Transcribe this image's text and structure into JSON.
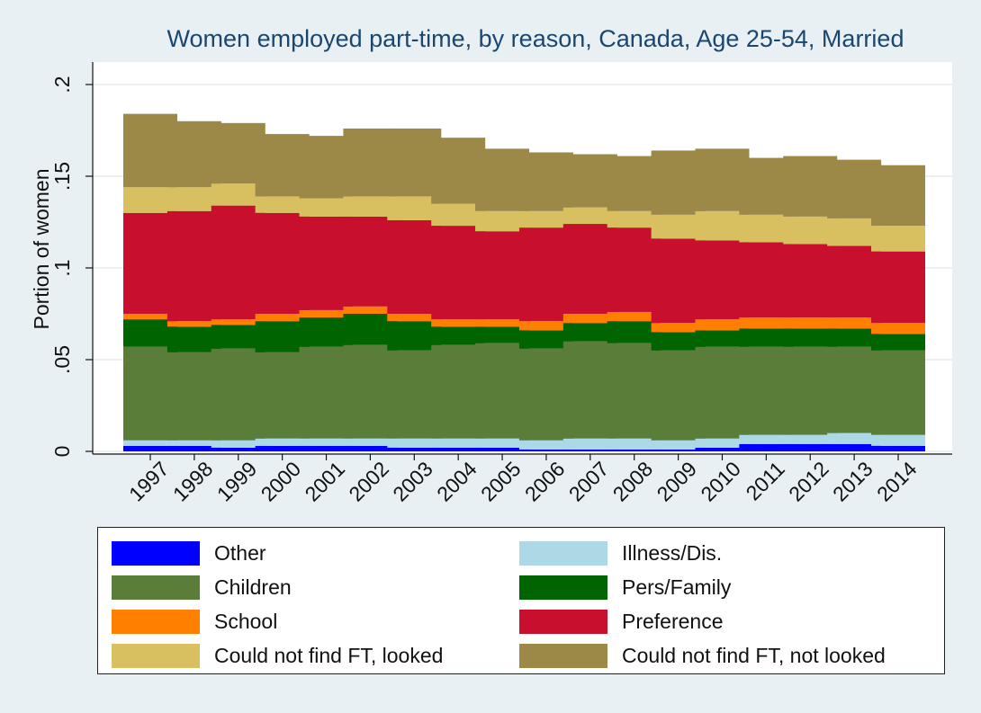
{
  "chart_data": {
    "type": "bar",
    "stacked": true,
    "title": "Women employed part-time, by reason, Canada, Age 25-54, Married",
    "xlabel": "",
    "ylabel": "Portion of women",
    "ylim": [
      0,
      0.21
    ],
    "yticks": [
      {
        "value": 0,
        "label": "0"
      },
      {
        "value": 0.05,
        "label": ".05"
      },
      {
        "value": 0.1,
        "label": ".1"
      },
      {
        "value": 0.15,
        "label": ".15"
      },
      {
        "value": 0.2,
        "label": ".2"
      }
    ],
    "grid": true,
    "legend_position": "bottom",
    "categories": [
      "1997",
      "1998",
      "1999",
      "2000",
      "2001",
      "2002",
      "2003",
      "2004",
      "2005",
      "2006",
      "2007",
      "2008",
      "2009",
      "2010",
      "2011",
      "2012",
      "2013",
      "2014"
    ],
    "series": [
      {
        "name": "Other",
        "color": "#0000ff",
        "values": [
          0.003,
          0.003,
          0.002,
          0.003,
          0.003,
          0.003,
          0.002,
          0.002,
          0.002,
          0.001,
          0.001,
          0.001,
          0.001,
          0.002,
          0.004,
          0.004,
          0.004,
          0.003
        ]
      },
      {
        "name": "Illness/Dis.",
        "color": "#add8e6",
        "values": [
          0.003,
          0.003,
          0.004,
          0.004,
          0.004,
          0.004,
          0.005,
          0.005,
          0.005,
          0.005,
          0.006,
          0.006,
          0.005,
          0.005,
          0.005,
          0.005,
          0.006,
          0.006
        ]
      },
      {
        "name": "Children",
        "color": "#5a7d3a",
        "values": [
          0.051,
          0.048,
          0.05,
          0.047,
          0.05,
          0.051,
          0.048,
          0.051,
          0.052,
          0.05,
          0.053,
          0.052,
          0.049,
          0.05,
          0.048,
          0.048,
          0.047,
          0.046
        ]
      },
      {
        "name": "Pers/Family",
        "color": "#006400",
        "values": [
          0.015,
          0.014,
          0.013,
          0.017,
          0.016,
          0.017,
          0.016,
          0.01,
          0.009,
          0.01,
          0.01,
          0.012,
          0.01,
          0.009,
          0.01,
          0.01,
          0.01,
          0.009
        ]
      },
      {
        "name": "School",
        "color": "#ff8000",
        "values": [
          0.003,
          0.003,
          0.003,
          0.004,
          0.004,
          0.004,
          0.004,
          0.004,
          0.004,
          0.005,
          0.005,
          0.005,
          0.005,
          0.006,
          0.006,
          0.006,
          0.006,
          0.006
        ]
      },
      {
        "name": "Preference",
        "color": "#c8102e",
        "values": [
          0.055,
          0.06,
          0.062,
          0.055,
          0.051,
          0.049,
          0.051,
          0.051,
          0.048,
          0.051,
          0.049,
          0.046,
          0.046,
          0.043,
          0.041,
          0.04,
          0.039,
          0.039
        ]
      },
      {
        "name": "Could not find FT, looked",
        "color": "#d8c060",
        "values": [
          0.014,
          0.013,
          0.012,
          0.009,
          0.01,
          0.011,
          0.013,
          0.012,
          0.011,
          0.009,
          0.009,
          0.009,
          0.013,
          0.016,
          0.015,
          0.015,
          0.015,
          0.014
        ]
      },
      {
        "name": "Could not find FT, not looked",
        "color": "#9c8847",
        "values": [
          0.04,
          0.036,
          0.033,
          0.034,
          0.034,
          0.037,
          0.037,
          0.036,
          0.034,
          0.032,
          0.029,
          0.03,
          0.035,
          0.034,
          0.031,
          0.033,
          0.032,
          0.033
        ]
      }
    ]
  }
}
